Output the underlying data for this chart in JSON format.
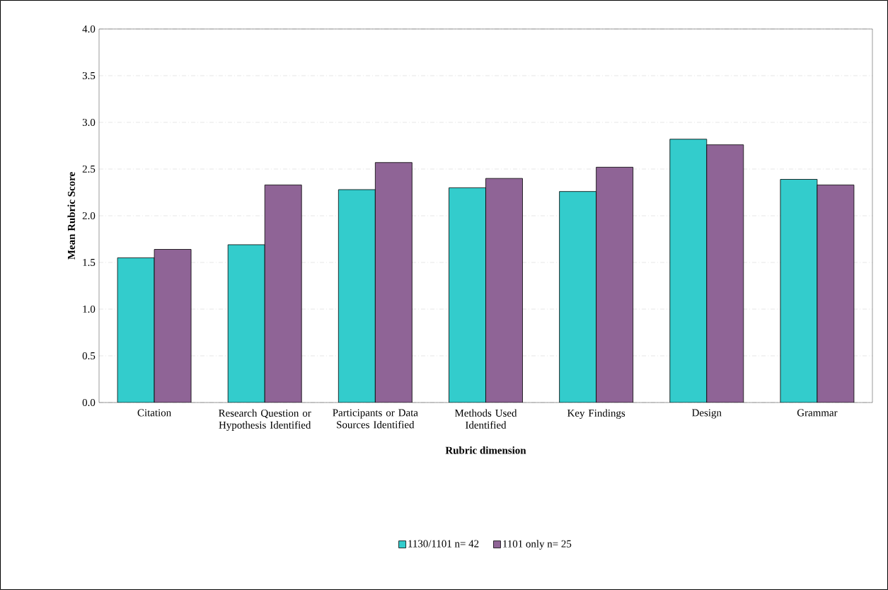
{
  "chart_data": {
    "type": "bar",
    "xlabel": "Rubric dimension",
    "ylabel": "Mean Rubric Score",
    "categories": [
      "Citation",
      "Research Question or Hypothesis Identified",
      "Participants or Data Sources Identified",
      "Methods Used Identified",
      "Key Findings",
      "Design",
      "Grammar"
    ],
    "series": [
      {
        "name": "1130/1101 n= 42",
        "color": "#33cccc",
        "values": [
          1.55,
          1.69,
          2.28,
          2.3,
          2.26,
          2.82,
          2.39
        ]
      },
      {
        "name": "1101 only n= 25",
        "color": "#8f6496",
        "values": [
          1.64,
          2.33,
          2.57,
          2.4,
          2.52,
          2.76,
          2.33
        ]
      }
    ],
    "ylim": [
      0,
      4
    ],
    "yticks": [
      {
        "value": 0,
        "label": "0.0"
      },
      {
        "value": 0.5,
        "label": "0.5"
      },
      {
        "value": 1,
        "label": "1.0"
      },
      {
        "value": 1.5,
        "label": "1.5"
      },
      {
        "value": 2,
        "label": "2.0"
      },
      {
        "value": 2.5,
        "label": "2.5"
      },
      {
        "value": 3,
        "label": "3.0"
      },
      {
        "value": 3.5,
        "label": "3.5"
      },
      {
        "value": 4,
        "label": "4.0"
      }
    ],
    "grid": "y",
    "legend": "bottom"
  }
}
